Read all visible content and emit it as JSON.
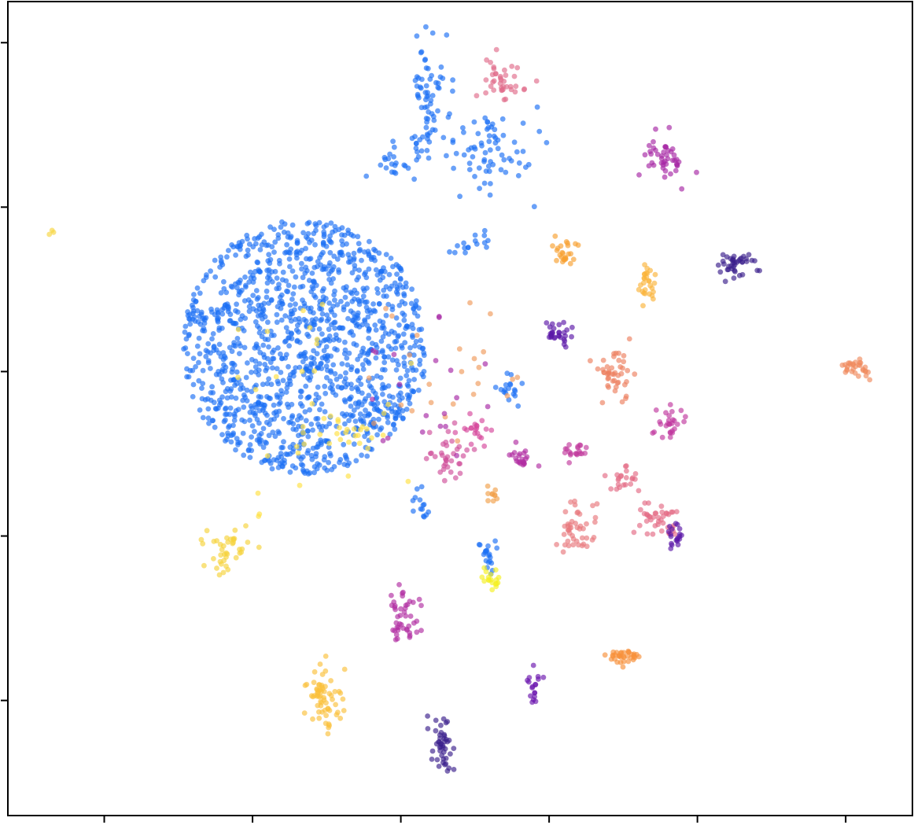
{
  "chart_data": {
    "type": "scatter",
    "title": "",
    "xlabel": "",
    "ylabel": "",
    "x_ticks": [
      -4,
      -2,
      0,
      2,
      4,
      6
    ],
    "y_ticks": [
      -4,
      -2,
      0,
      2,
      4
    ],
    "x_tick_labels": [],
    "y_tick_labels": [],
    "xlim": [
      -5.3,
      6.9
    ],
    "ylim": [
      -5.4,
      4.5
    ],
    "grid": false,
    "legend": "none",
    "point_alpha": 0.65,
    "clusters": [
      {
        "color": "#1a6ef5",
        "shape": "disc",
        "center": [
          -1.3,
          0.3
        ],
        "spread": [
          1.65,
          1.55
        ],
        "count": 1350
      },
      {
        "color": "#1a6ef5",
        "shape": "gauss",
        "center": [
          0.4,
          3.3
        ],
        "spread": [
          0.14,
          0.35
        ],
        "count": 70
      },
      {
        "color": "#1a6ef5",
        "shape": "gauss",
        "center": [
          1.15,
          2.65
        ],
        "spread": [
          0.28,
          0.28
        ],
        "count": 70
      },
      {
        "color": "#1a6ef5",
        "shape": "gauss",
        "center": [
          -0.05,
          2.55
        ],
        "spread": [
          0.18,
          0.2
        ],
        "count": 25
      },
      {
        "color": "#1a6ef5",
        "shape": "gauss",
        "center": [
          0.95,
          1.55
        ],
        "spread": [
          0.12,
          0.08
        ],
        "count": 16
      },
      {
        "color": "#1a6ef5",
        "shape": "gauss",
        "center": [
          1.45,
          -0.2
        ],
        "spread": [
          0.12,
          0.1
        ],
        "count": 18
      },
      {
        "color": "#1a6ef5",
        "shape": "gauss",
        "center": [
          1.15,
          -2.2
        ],
        "spread": [
          0.07,
          0.12
        ],
        "count": 20
      },
      {
        "color": "#1a6ef5",
        "shape": "gauss",
        "center": [
          0.3,
          -1.65
        ],
        "spread": [
          0.08,
          0.08
        ],
        "count": 14
      },
      {
        "color": "#e06b8b",
        "shape": "gauss",
        "center": [
          1.35,
          3.55
        ],
        "spread": [
          0.15,
          0.18
        ],
        "count": 40
      },
      {
        "color": "#a626a4",
        "shape": "gauss",
        "center": [
          3.55,
          2.6
        ],
        "spread": [
          0.14,
          0.13
        ],
        "count": 45
      },
      {
        "color": "#3b1f8c",
        "shape": "gauss",
        "center": [
          4.55,
          1.3
        ],
        "spread": [
          0.13,
          0.08
        ],
        "count": 40
      },
      {
        "color": "#f7a030",
        "shape": "gauss",
        "center": [
          2.2,
          1.45
        ],
        "spread": [
          0.09,
          0.08
        ],
        "count": 25
      },
      {
        "color": "#fbb33a",
        "shape": "gauss",
        "center": [
          3.35,
          1.05
        ],
        "spread": [
          0.07,
          0.12
        ],
        "count": 28
      },
      {
        "color": "#5b17a8",
        "shape": "gauss",
        "center": [
          2.1,
          0.45
        ],
        "spread": [
          0.1,
          0.07
        ],
        "count": 30
      },
      {
        "color": "#ec7f5f",
        "shape": "gauss",
        "center": [
          2.9,
          -0.05
        ],
        "spread": [
          0.11,
          0.17
        ],
        "count": 45
      },
      {
        "color": "#f08a5d",
        "shape": "gauss",
        "center": [
          6.15,
          0.05
        ],
        "spread": [
          0.1,
          0.07
        ],
        "count": 30
      },
      {
        "color": "#d04e9a",
        "shape": "gauss",
        "center": [
          0.65,
          -1.05
        ],
        "spread": [
          0.16,
          0.15
        ],
        "count": 35
      },
      {
        "color": "#d6479b",
        "shape": "gauss",
        "center": [
          1.0,
          -0.7
        ],
        "spread": [
          0.12,
          0.1
        ],
        "count": 20
      },
      {
        "color": "#b02da2",
        "shape": "gauss",
        "center": [
          1.65,
          -1.05
        ],
        "spread": [
          0.08,
          0.08
        ],
        "count": 22
      },
      {
        "color": "#c23a9d",
        "shape": "gauss",
        "center": [
          2.35,
          -0.95
        ],
        "spread": [
          0.08,
          0.07
        ],
        "count": 20
      },
      {
        "color": "#c0389e",
        "shape": "gauss",
        "center": [
          3.6,
          -0.65
        ],
        "spread": [
          0.12,
          0.1
        ],
        "count": 28
      },
      {
        "color": "#e36a84",
        "shape": "gauss",
        "center": [
          3.0,
          -1.3
        ],
        "spread": [
          0.1,
          0.1
        ],
        "count": 22
      },
      {
        "color": "#e36a84",
        "shape": "gauss",
        "center": [
          3.5,
          -1.8
        ],
        "spread": [
          0.13,
          0.12
        ],
        "count": 40
      },
      {
        "color": "#e8787c",
        "shape": "gauss",
        "center": [
          2.35,
          -1.95
        ],
        "spread": [
          0.15,
          0.15
        ],
        "count": 45
      },
      {
        "color": "#5b17a8",
        "shape": "gauss",
        "center": [
          3.7,
          -2.0
        ],
        "spread": [
          0.07,
          0.1
        ],
        "count": 20
      },
      {
        "color": "#f1a04a",
        "shape": "gauss",
        "center": [
          1.25,
          -1.55
        ],
        "spread": [
          0.05,
          0.08
        ],
        "count": 10
      },
      {
        "color": "#f6d23a",
        "shape": "gauss",
        "center": [
          -2.3,
          -2.2
        ],
        "spread": [
          0.22,
          0.18
        ],
        "count": 40
      },
      {
        "color": "#ffe040",
        "shape": "gauss",
        "center": [
          -0.8,
          -0.75
        ],
        "spread": [
          0.3,
          0.12
        ],
        "count": 25
      },
      {
        "color": "#f5f020",
        "shape": "gauss",
        "center": [
          1.25,
          -2.55
        ],
        "spread": [
          0.08,
          0.05
        ],
        "count": 18
      },
      {
        "color": "#b02da2",
        "shape": "gauss",
        "center": [
          0.05,
          -2.95
        ],
        "spread": [
          0.12,
          0.14
        ],
        "count": 45
      },
      {
        "color": "#fbc03a",
        "shape": "gauss",
        "center": [
          -1.05,
          -4.0
        ],
        "spread": [
          0.12,
          0.23
        ],
        "count": 65
      },
      {
        "color": "#3b1f8c",
        "shape": "gauss",
        "center": [
          0.55,
          -4.55
        ],
        "spread": [
          0.07,
          0.16
        ],
        "count": 45
      },
      {
        "color": "#6a14ad",
        "shape": "gauss",
        "center": [
          1.8,
          -3.85
        ],
        "spread": [
          0.05,
          0.1
        ],
        "count": 18
      },
      {
        "color": "#f7903a",
        "shape": "gauss",
        "center": [
          3.0,
          -3.45
        ],
        "spread": [
          0.14,
          0.05
        ],
        "count": 35
      },
      {
        "color": "#f8d640",
        "shape": "gauss",
        "center": [
          -4.7,
          1.7
        ],
        "spread": [
          0.03,
          0.03
        ],
        "count": 3
      },
      {
        "color": "#ef9a5a",
        "shape": "disc",
        "center": [
          0.5,
          0.0
        ],
        "spread": [
          1.2,
          1.0
        ],
        "count": 25
      },
      {
        "color": "#a626a4",
        "shape": "disc",
        "center": [
          0.3,
          -0.3
        ],
        "spread": [
          1.0,
          1.0
        ],
        "count": 20
      },
      {
        "color": "#ffe040",
        "shape": "disc",
        "center": [
          -1.0,
          -0.5
        ],
        "spread": [
          1.8,
          1.6
        ],
        "count": 25
      }
    ]
  }
}
